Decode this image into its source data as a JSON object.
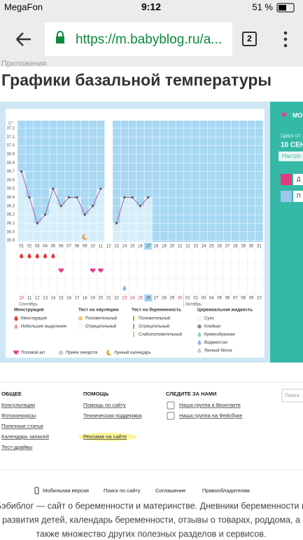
{
  "status": {
    "carrier": "MegaFon",
    "time": "9:12",
    "battery": "51 %"
  },
  "browser": {
    "url": "https://m.babyblog.ru/a...",
    "tabs": "2"
  },
  "breadcrumb": "Приложения",
  "title": "Графики базальной температуры",
  "chart": {
    "type": "line",
    "y_unit": "C°",
    "ylim": [
      35.9,
      37.2
    ],
    "yticks": [
      37.2,
      37.1,
      {
        "value": 37,
        "label": "37.0"
      },
      36.9,
      36.8,
      36.7,
      36.6,
      36.5,
      36.4,
      36.3,
      36.2,
      36.1,
      {
        "value": 36,
        "label": "36.0"
      },
      35.9
    ],
    "days": [
      "01",
      "02",
      "03",
      "04",
      "05",
      "06",
      "07",
      "08",
      "09",
      "10",
      "11",
      "12",
      "13",
      "14",
      "15",
      "16",
      "17",
      "18",
      "19",
      "20",
      "21",
      "22",
      "23",
      "24",
      "25",
      "26",
      "27",
      "28",
      "29",
      "30",
      "31"
    ],
    "values": [
      36.7,
      36.4,
      36.1,
      36.2,
      36.5,
      36.3,
      36.4,
      36.4,
      36.2,
      36.3,
      36.5,
      null,
      36.1,
      36.4,
      36.4,
      36.3,
      36.4,
      null,
      null,
      null,
      null,
      null,
      null,
      null,
      null,
      null,
      null,
      null,
      null,
      null,
      null
    ],
    "today_index": 16,
    "cycle_days": [
      "10",
      "11",
      "12",
      "13",
      "14",
      "15",
      "16",
      "17",
      "18",
      "19",
      "20",
      "21",
      "22",
      "23",
      "24",
      "25",
      "26",
      "27",
      "28",
      "29",
      "30",
      "01",
      "02",
      "03",
      "04",
      "05",
      "06",
      "07",
      "08",
      "09",
      "10"
    ],
    "cycle_red": [
      0,
      13,
      14,
      15,
      20
    ],
    "months": [
      "Сентябрь",
      "Октябрь"
    ],
    "month_starts": [
      0,
      21
    ],
    "menstruation_days": [
      1,
      2,
      3,
      4,
      5
    ],
    "sex_days": [
      6,
      10,
      11
    ],
    "moon_days": [
      9
    ],
    "cervical_days": [
      14
    ]
  },
  "legend": {
    "groups": [
      {
        "title": "Менструация",
        "items": [
          "Менструация",
          "Небольшие выделения"
        ]
      },
      {
        "title": "Тест на овуляцию",
        "items": [
          "Положительный",
          "Отрицательный"
        ]
      },
      {
        "title": "Тест на беременность",
        "items": [
          "Положительный",
          "Отрицательный",
          "Слабоположительный"
        ]
      },
      {
        "title": "Цервикальная жидкость",
        "items": [
          "Сухо",
          "Клейкая",
          "Кремообразная",
          "Водянистая",
          "Яичный белок"
        ]
      }
    ],
    "extras": [
      "Половой акт",
      "Прием лекарств",
      "Лунный календарь"
    ]
  },
  "side": {
    "heading": "МОИ",
    "cycle": "Цикл от",
    "date": "10 СЕН",
    "settings": "Настро",
    "btn1": "Д",
    "btn2": "П"
  },
  "footer": {
    "columns": [
      {
        "title": "ОБЩЕЕ",
        "links": [
          "Консультации",
          "Фотоконкурсы",
          "Полезные статьи",
          "Календарь записей",
          "Тест-драйвы"
        ]
      },
      {
        "title": "ПОМОЩЬ",
        "links": [
          "Помощь по сайту",
          "Техническая поддержка",
          "",
          "Реклама на сайте"
        ]
      },
      {
        "title": "СЛЕДИТЕ ЗА НАМИ",
        "links": [
          "Наша группа в Вконтакте",
          "Наша группа на Фейсбуке"
        ]
      }
    ],
    "search": "Поиск",
    "bottom_links": [
      "Мобильная версия",
      "Поиск по сайту",
      "Соглашение",
      "Правообладателям"
    ],
    "about": [
      "Бэбиблог — сайт о беременности и материнстве. Дневники беременности и",
      "развития детей, календарь беременности, отзывы о товарах, роддома, а",
      "также множество других полезных разделов и сервисов."
    ]
  }
}
